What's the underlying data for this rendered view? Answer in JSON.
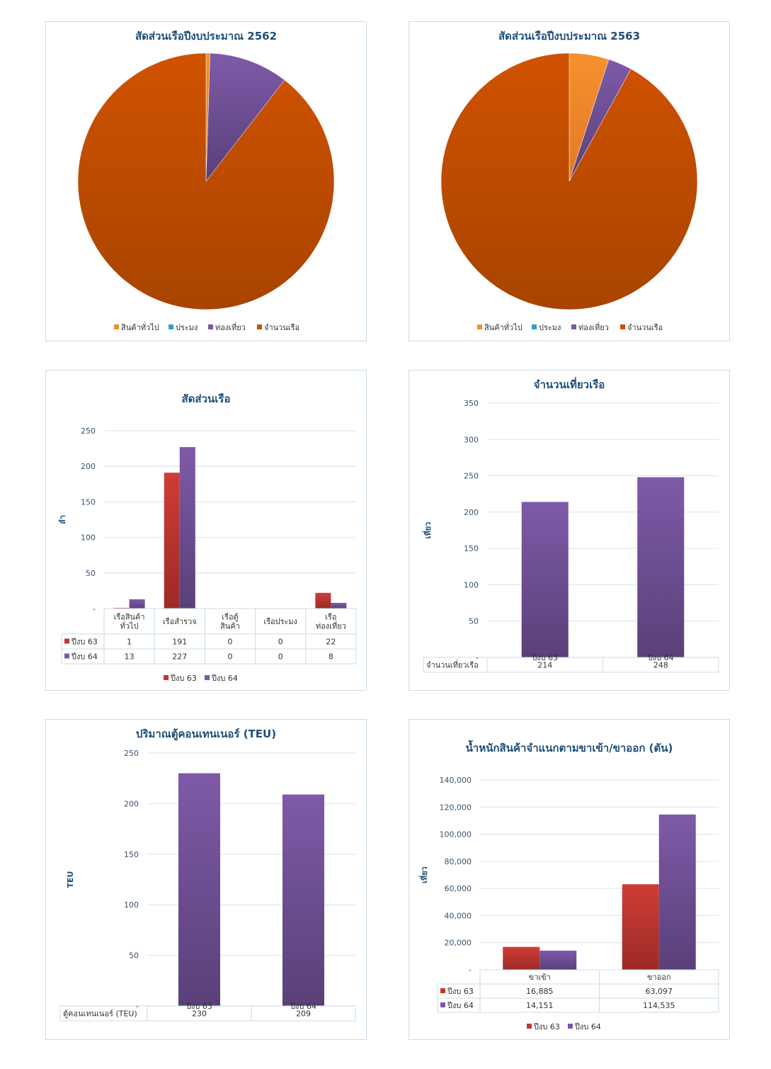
{
  "colors": {
    "general_cargo": "#f28e2b",
    "fishing": "#2ea2c6",
    "tourism": "#7b58a6",
    "total": "#c85200",
    "fy63": "#c0392b",
    "fy64": "#7b58a6",
    "title": "#1f4e79"
  },
  "chart_data": [
    {
      "id": "pie2562",
      "type": "pie",
      "title": "สัดส่วนเรือปีงบประมาณ 2562",
      "legend_position": "bottom",
      "labels": [
        "สินค้าทั่วไป",
        "ประมง",
        "ท่องเที่ยว",
        "จำนวนเรือ"
      ],
      "values": [
        0.5,
        0,
        10,
        89.5
      ]
    },
    {
      "id": "pie2563",
      "type": "pie",
      "title": "สัดส่วนเรือปีงบประมาณ 2563",
      "legend_position": "bottom",
      "labels": [
        "สินค้าทั่วไป",
        "ประมง",
        "ท่องเที่ยว",
        "จำนวนเรือ"
      ],
      "values": [
        5,
        0,
        3,
        92
      ]
    },
    {
      "id": "ships",
      "type": "bar",
      "title": "สัดส่วนเรือ",
      "ylabel": "ลำ",
      "ylim": [
        0,
        250
      ],
      "yticks": [
        "-",
        "50",
        "100",
        "150",
        "200",
        "250"
      ],
      "categories": [
        "เรือสินค้า\nทั่วไป",
        "เรือสำรวจ",
        "เรือตู้\nสินค้า",
        "เรือประมง",
        "เรือ\nท่องเที่ยว"
      ],
      "series": [
        {
          "name": "ปีงบ 63",
          "values": [
            1,
            191,
            0,
            0,
            22
          ]
        },
        {
          "name": "ปีงบ 64",
          "values": [
            13,
            227,
            0,
            0,
            8
          ]
        }
      ],
      "legend": [
        "ปีงบ 63",
        "ปีงบ 64"
      ],
      "legend_position": "bottom"
    },
    {
      "id": "trips",
      "type": "bar",
      "title": "จำนวนเที่ยวเรือ",
      "ylabel": "เที่ยว",
      "ylim": [
        0,
        350
      ],
      "yticks": [
        "-",
        "50",
        "100",
        "150",
        "200",
        "250",
        "300",
        "350"
      ],
      "categories": [
        "ปีงบ 63",
        "ปีงบ 64"
      ],
      "series": [
        {
          "name": "จำนวนเที่ยวเรือ",
          "values": [
            214,
            248
          ]
        }
      ]
    },
    {
      "id": "teu",
      "type": "bar",
      "title": "ปริมาณตู้คอนเทนเนอร์ (TEU)",
      "ylabel": "TEU",
      "ylim": [
        0,
        250
      ],
      "yticks": [
        "-",
        "50",
        "100",
        "150",
        "200",
        "250"
      ],
      "categories": [
        "ปีงบ 63",
        "ปีงบ 64"
      ],
      "series": [
        {
          "name": "ตู้คอนเทนเนอร์ (TEU)",
          "values": [
            230,
            209
          ]
        }
      ]
    },
    {
      "id": "weight",
      "type": "bar",
      "title": "น้ำหนักสินค้าจำแนกตามขาเข้า/ขาออก (ตัน)",
      "ylabel": "เที่ยว",
      "ylim": [
        0,
        140000
      ],
      "yticks": [
        "-",
        "20,000",
        "40,000",
        "60,000",
        "80,000",
        "100,000",
        "120,000",
        "140,000"
      ],
      "categories": [
        "ขาเข้า",
        "ขาออก"
      ],
      "series": [
        {
          "name": "ปีงบ 63",
          "values": [
            16885,
            63097
          ],
          "display": [
            "16,885",
            "63,097"
          ]
        },
        {
          "name": "ปีงบ 64",
          "values": [
            14151,
            114535
          ],
          "display": [
            "14,151",
            "114,535"
          ]
        }
      ],
      "legend": [
        "ปีงบ 63",
        "ปีงบ 64"
      ],
      "legend_position": "bottom"
    }
  ]
}
